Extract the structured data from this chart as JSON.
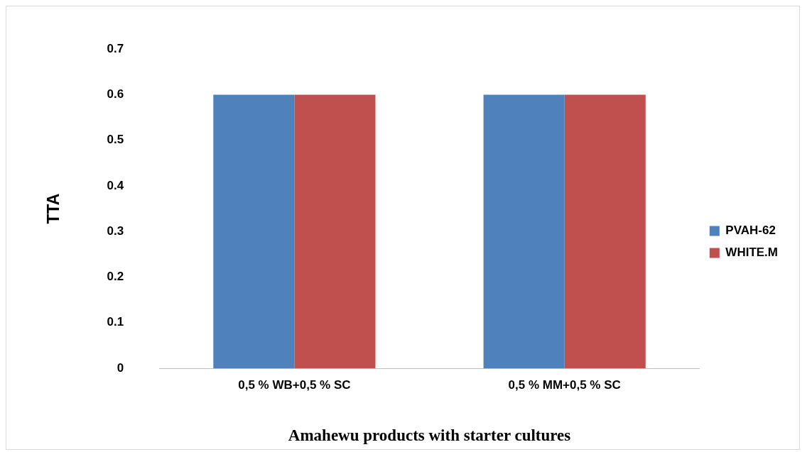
{
  "chart_data": {
    "type": "bar",
    "xlabel": "Amahewu products with starter cultures",
    "ylabel": "TTA",
    "categories": [
      "0,5 % WB+0,5 % SC",
      "0,5 % MM+0,5 % SC"
    ],
    "series": [
      {
        "name": "PVAH-62",
        "color": "#4f81bd",
        "values": [
          0.6,
          0.6
        ]
      },
      {
        "name": "WHITE.M",
        "color": "#c0504d",
        "values": [
          0.6,
          0.6
        ]
      }
    ],
    "ylim": [
      0,
      0.7
    ],
    "yticks": [
      0,
      0.1,
      0.2,
      0.3,
      0.4,
      0.5,
      0.6,
      0.7
    ],
    "grid": false,
    "legend": "right"
  }
}
